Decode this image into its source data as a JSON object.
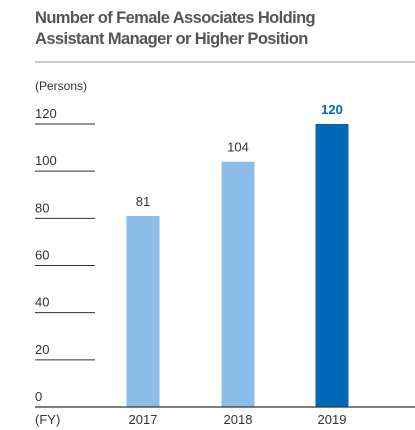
{
  "chart_data": {
    "type": "bar",
    "title": "Number of Female Associates Holding Assistant Manager or Higher Position",
    "y_label": "(Persons)",
    "x_label": "(FY)",
    "categories": [
      "2017",
      "2018",
      "2019"
    ],
    "values": [
      81,
      104,
      120
    ],
    "colors": [
      "#8bbde8",
      "#8bbde8",
      "#0068b7"
    ],
    "value_label_colors": [
      "#333333",
      "#333333",
      "#0068b7"
    ],
    "ylim": [
      0,
      120
    ],
    "yticks": [
      0,
      20,
      40,
      60,
      80,
      100,
      120
    ]
  }
}
